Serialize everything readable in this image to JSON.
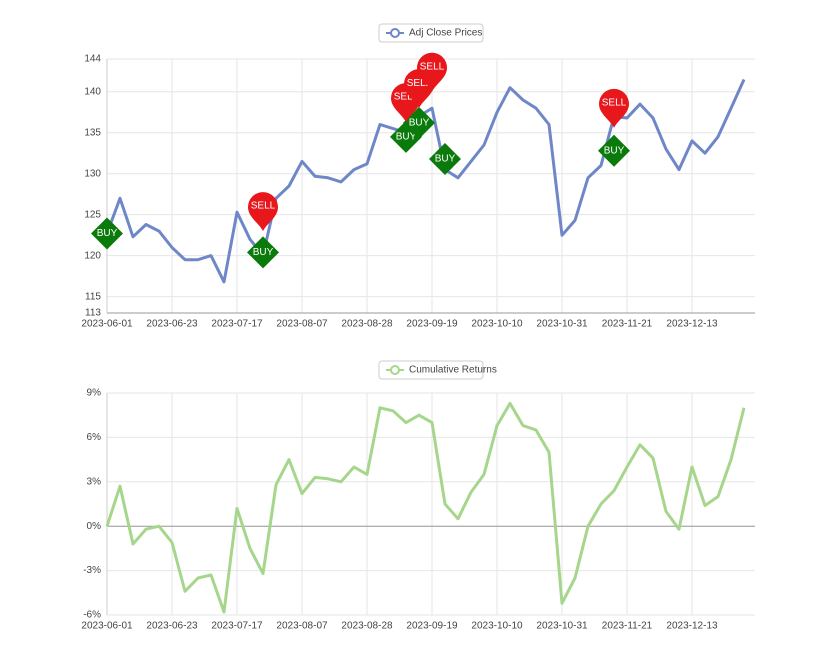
{
  "chart_data": [
    {
      "type": "line",
      "categories": [
        "2023-06-01",
        null,
        null,
        null,
        null,
        "2023-06-23",
        null,
        null,
        null,
        null,
        "2023-07-17",
        null,
        null,
        null,
        null,
        "2023-08-07",
        null,
        null,
        null,
        null,
        "2023-08-28",
        null,
        null,
        null,
        null,
        "2023-09-19",
        null,
        null,
        null,
        null,
        "2023-10-10",
        null,
        null,
        null,
        null,
        "2023-10-31",
        null,
        null,
        null,
        null,
        "2023-11-21",
        null,
        null,
        null,
        null,
        "2023-12-13",
        null,
        null,
        null,
        null
      ],
      "series": [
        {
          "name": "Adj Close Prices",
          "color": "#6f87c8",
          "values": [
            122.7,
            127,
            122.3,
            123.8,
            123,
            121,
            119.5,
            119.5,
            120,
            116.8,
            125.3,
            122,
            120,
            127,
            128.5,
            131.5,
            129.7,
            129.5,
            129,
            130.5,
            131.2,
            136,
            135.5,
            135,
            137,
            138,
            130.5,
            129.5,
            131.5,
            133.5,
            137.5,
            140.5,
            139,
            138,
            136,
            122.5,
            124.3,
            129.5,
            131,
            137,
            136.8,
            138.5,
            136.8,
            133,
            130.5,
            134,
            132.5,
            134.5,
            138,
            141.5
          ]
        }
      ],
      "markers": [
        {
          "label": "BUY",
          "color": "#0a7a0a",
          "values": [
            122.7,
            null,
            null,
            null,
            null,
            null,
            null,
            null,
            null,
            null,
            null,
            null,
            120.4,
            null,
            null,
            null,
            null,
            null,
            null,
            null,
            null,
            null,
            null,
            134.5,
            136.2,
            null,
            131.8,
            null,
            null,
            null,
            null,
            null,
            null,
            null,
            null,
            null,
            null,
            null,
            null,
            132.8,
            null,
            null,
            null,
            null,
            null,
            null,
            null,
            null,
            null,
            null
          ]
        },
        {
          "label": "SELL",
          "color": "#e8171c",
          "values": [
            null,
            null,
            null,
            null,
            null,
            null,
            null,
            null,
            null,
            null,
            null,
            null,
            123,
            null,
            null,
            null,
            null,
            null,
            null,
            null,
            null,
            null,
            null,
            136.3,
            138,
            140,
            null,
            null,
            null,
            null,
            null,
            null,
            null,
            null,
            null,
            null,
            null,
            null,
            null,
            135.6,
            null,
            null,
            null,
            null,
            null,
            null,
            null,
            null,
            null,
            null
          ]
        }
      ],
      "ylim": [
        113,
        144
      ],
      "yticks": [
        113,
        115,
        120,
        125,
        130,
        135,
        140,
        144
      ],
      "grid": true
    },
    {
      "type": "line",
      "categories": [
        "2023-06-01",
        null,
        null,
        null,
        null,
        "2023-06-23",
        null,
        null,
        null,
        null,
        "2023-07-17",
        null,
        null,
        null,
        null,
        "2023-08-07",
        null,
        null,
        null,
        null,
        "2023-08-28",
        null,
        null,
        null,
        null,
        "2023-09-19",
        null,
        null,
        null,
        null,
        "2023-10-10",
        null,
        null,
        null,
        null,
        "2023-10-31",
        null,
        null,
        null,
        null,
        "2023-11-21",
        null,
        null,
        null,
        null,
        "2023-12-13",
        null,
        null,
        null,
        null
      ],
      "series": [
        {
          "name": "Cumulative Returns",
          "color": "#a6d68c",
          "values": [
            0,
            2.7,
            -1.2,
            -0.2,
            0,
            -1.1,
            -4.4,
            -3.5,
            -3.3,
            -5.8,
            1.2,
            -1.5,
            -3.2,
            2.8,
            4.5,
            2.2,
            3.3,
            3.2,
            3,
            4,
            3.5,
            8,
            7.8,
            7,
            7.5,
            7,
            1.5,
            0.5,
            2.3,
            3.5,
            6.8,
            8.3,
            6.8,
            6.5,
            5,
            -5.2,
            -3.5,
            0,
            1.5,
            2.4,
            4,
            5.5,
            4.6,
            1,
            -0.2,
            4,
            1.4,
            2,
            4.5,
            8
          ]
        }
      ],
      "ylim": [
        -6,
        9
      ],
      "yticks": [
        {
          "value": -6,
          "label": "-6%"
        },
        {
          "value": -3,
          "label": "-3%"
        },
        {
          "value": 0,
          "label": "0%"
        },
        {
          "value": 3,
          "label": "3%"
        },
        {
          "value": 6,
          "label": "6%"
        },
        {
          "value": 9,
          "label": "9%"
        }
      ],
      "grid": true
    }
  ]
}
